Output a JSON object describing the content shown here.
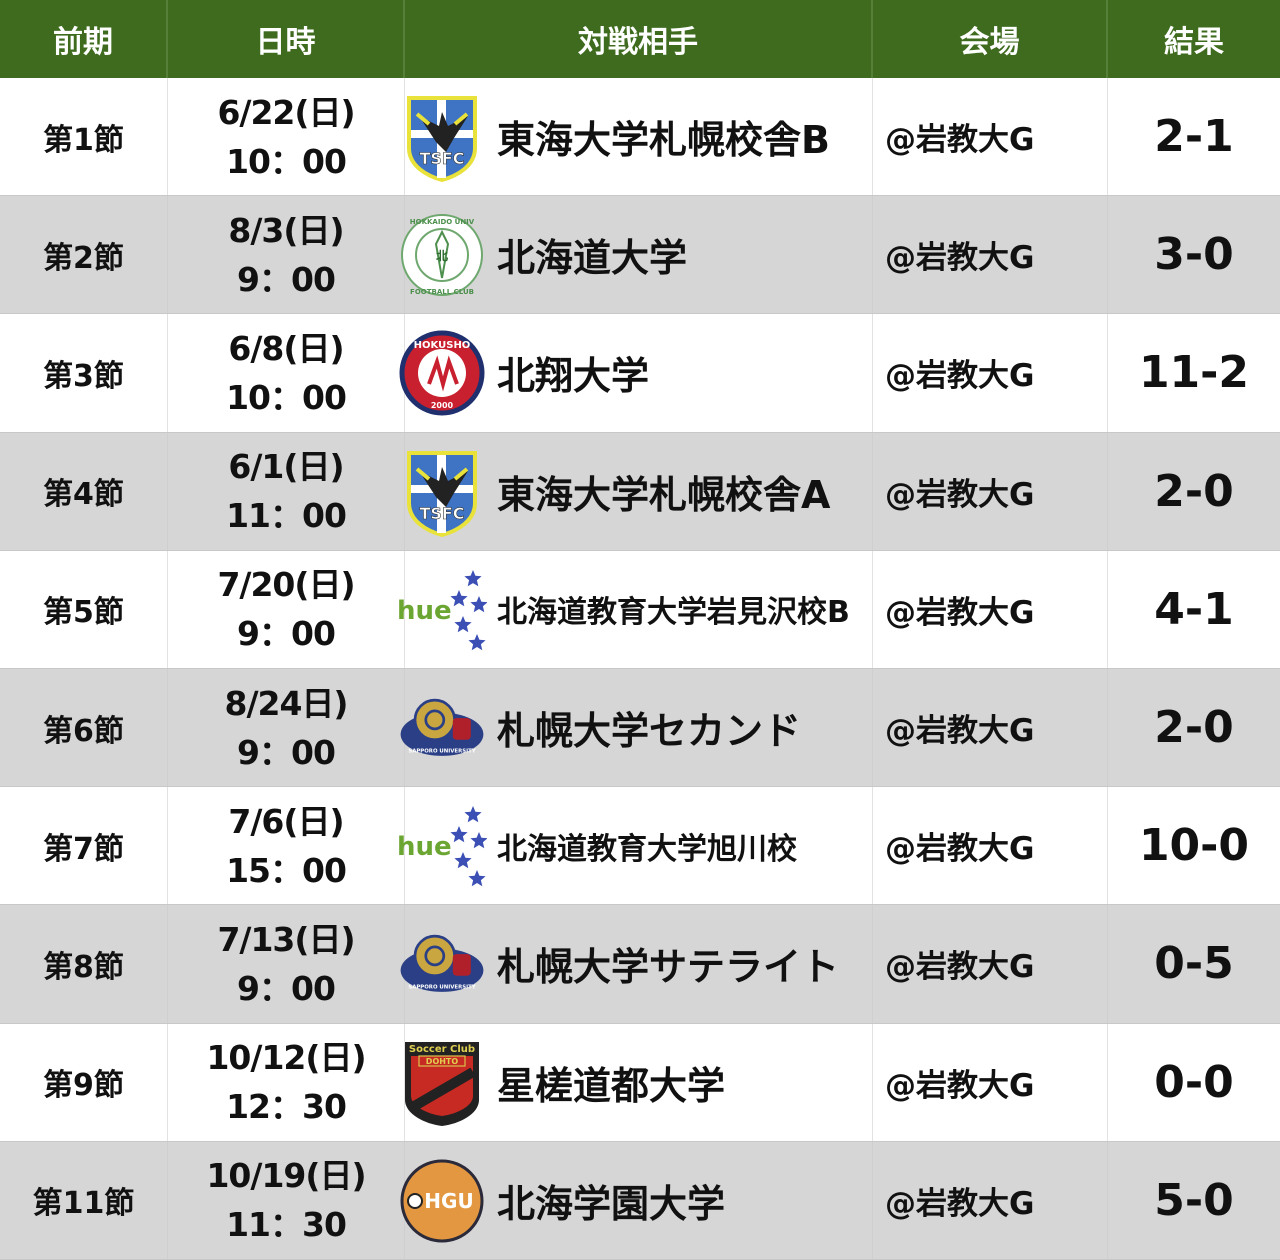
{
  "header": {
    "round": "前期",
    "datetime": "日時",
    "opponent": "対戦相手",
    "venue": "会場",
    "result": "結果"
  },
  "colors": {
    "header_bg": "#3e6b1e",
    "row_alt_bg": "#d6d6d6"
  },
  "matches": [
    {
      "round": "第1節",
      "date": "6/22(日)",
      "time": "10：00",
      "logo": "tsfc-shield",
      "logo_text": "TSFC",
      "opponent": "東海大学札幌校舎B",
      "venue": "@岩教大G",
      "result": "2-1"
    },
    {
      "round": "第2節",
      "date": "8/3(日)",
      "time": "9：00",
      "logo": "hokudai-emblem",
      "logo_text": "HOKKAIDO UNIV. FOOTBALL CLUB",
      "opponent": "北海道大学",
      "venue": "@岩教大G",
      "result": "3-0"
    },
    {
      "round": "第3節",
      "date": "6/8(日)",
      "time": "10：00",
      "logo": "hokusho-emblem",
      "logo_text": "HOKUSHO 2000",
      "opponent": "北翔大学",
      "venue": "@岩教大G",
      "result": "11-2"
    },
    {
      "round": "第4節",
      "date": "6/1(日)",
      "time": "11：00",
      "logo": "tsfc-shield",
      "logo_text": "TSFC",
      "opponent": "東海大学札幌校舎A",
      "venue": "@岩教大G",
      "result": "2-0"
    },
    {
      "round": "第5節",
      "date": "7/20(日)",
      "time": "9：00",
      "logo": "hue-stars",
      "logo_text": "hue",
      "opponent": "北海道教育大学岩見沢校B",
      "venue": "@岩教大G",
      "result": "4-1"
    },
    {
      "round": "第6節",
      "date": "8/24日)",
      "time": "9：00",
      "logo": "sapporo-ram",
      "logo_text": "SAPPORO UNIVERSITY",
      "opponent": "札幌大学セカンド",
      "venue": "@岩教大G",
      "result": "2-0"
    },
    {
      "round": "第7節",
      "date": "7/6(日)",
      "time": "15：00",
      "logo": "hue-stars",
      "logo_text": "hue",
      "opponent": "北海道教育大学旭川校",
      "venue": "@岩教大G",
      "result": "10-0"
    },
    {
      "round": "第8節",
      "date": "7/13(日)",
      "time": "9：00",
      "logo": "sapporo-ram",
      "logo_text": "SAPPORO UNIVERSITY",
      "opponent": "札幌大学サテライト",
      "venue": "@岩教大G",
      "result": "0-5"
    },
    {
      "round": "第9節",
      "date": "10/12(日)",
      "time": "12：30",
      "logo": "dohto-shield",
      "logo_text": "Soccer Club DOHTO",
      "opponent": "星槎道都大学",
      "venue": "@岩教大G",
      "result": "0-0"
    },
    {
      "round": "第11節",
      "date": "10/19(日)",
      "time": "11：30",
      "logo": "hgu-circle",
      "logo_text": "HGU",
      "opponent": "北海学園大学",
      "venue": "@岩教大G",
      "result": "5-0"
    }
  ]
}
